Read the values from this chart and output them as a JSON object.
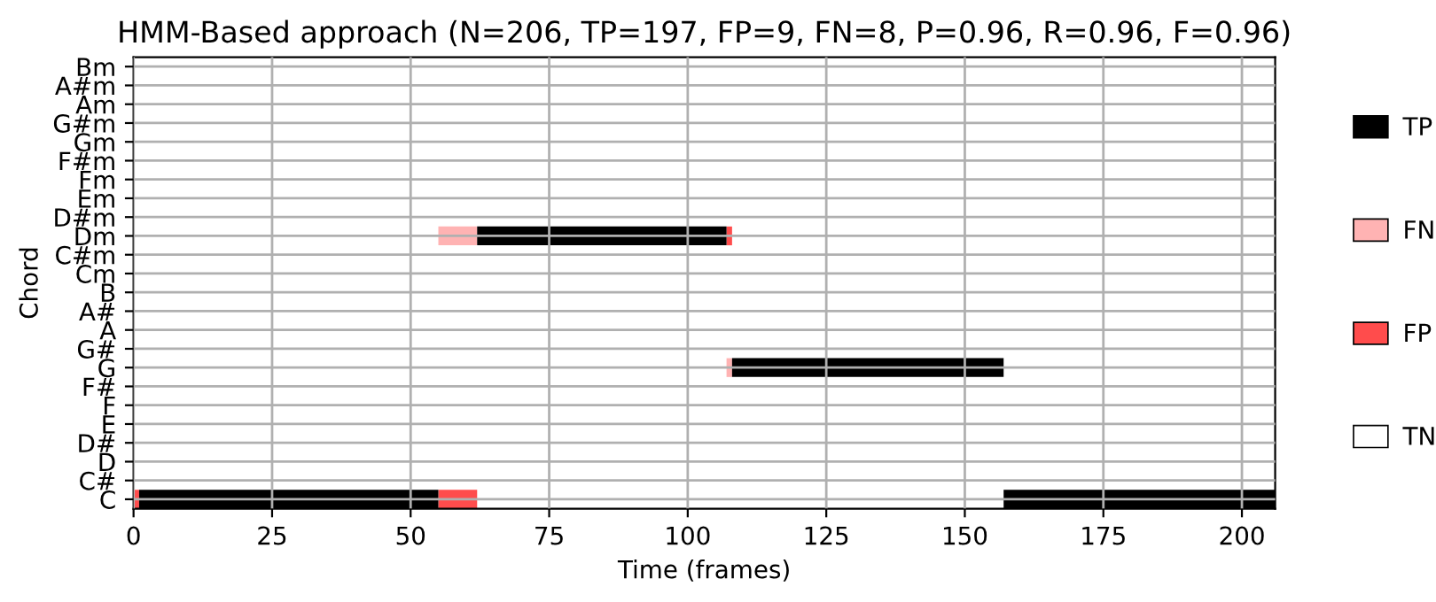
{
  "chart_data": {
    "type": "bar",
    "orientation": "horizontal",
    "title": "HMM-Based approach (N=206, TP=197, FP=9, FN=8, P=0.96, R=0.96, F=0.96)",
    "xlabel": "Time (frames)",
    "ylabel": "Chord",
    "categories": [
      "Bm",
      "A#m",
      "Am",
      "G#m",
      "Gm",
      "F#m",
      "Fm",
      "Em",
      "D#m",
      "Dm",
      "C#m",
      "Cm",
      "B",
      "A#",
      "A",
      "G#",
      "G",
      "F#",
      "F",
      "E",
      "D#",
      "D",
      "C#",
      "C"
    ],
    "series": [
      {
        "name": "TN",
        "color": "#ffffff",
        "values": [
          null,
          null,
          null,
          null,
          null,
          null,
          null,
          null,
          null,
          null,
          null,
          null,
          null,
          null,
          null,
          null,
          null,
          null,
          null,
          null,
          null,
          null,
          null,
          null
        ]
      },
      {
        "name": "FP",
        "color": "#ff4c4c",
        "values": [
          null,
          null,
          null,
          null,
          null,
          null,
          null,
          null,
          null,
          1,
          null,
          null,
          null,
          null,
          null,
          null,
          null,
          null,
          null,
          null,
          null,
          null,
          null,
          1
        ],
        "base": [
          null,
          null,
          null,
          null,
          null,
          null,
          null,
          null,
          null,
          107,
          null,
          null,
          null,
          null,
          null,
          null,
          null,
          null,
          null,
          null,
          null,
          null,
          null,
          0
        ]
      },
      {
        "color": "#ff4c4c",
        "values": [
          null,
          null,
          null,
          null,
          null,
          null,
          null,
          null,
          null,
          null,
          null,
          null,
          null,
          null,
          null,
          null,
          null,
          null,
          null,
          null,
          null,
          null,
          null,
          7
        ],
        "base": [
          null,
          null,
          null,
          null,
          null,
          null,
          null,
          null,
          null,
          null,
          null,
          null,
          null,
          null,
          null,
          null,
          null,
          null,
          null,
          null,
          null,
          null,
          null,
          55
        ]
      },
      {
        "name": "FN",
        "color": "#ffb3b3",
        "values": [
          null,
          null,
          null,
          null,
          null,
          null,
          null,
          null,
          null,
          7,
          null,
          null,
          null,
          null,
          null,
          null,
          1,
          null,
          null,
          null,
          null,
          null,
          null,
          null
        ],
        "base": [
          null,
          null,
          null,
          null,
          null,
          null,
          null,
          null,
          null,
          55,
          null,
          null,
          null,
          null,
          null,
          null,
          107,
          null,
          null,
          null,
          null,
          null,
          null,
          null
        ]
      },
      {
        "name": "TP",
        "color": "#000000",
        "values": [
          null,
          null,
          null,
          null,
          null,
          null,
          null,
          null,
          null,
          45,
          null,
          null,
          null,
          null,
          null,
          null,
          49,
          null,
          null,
          null,
          null,
          null,
          null,
          54
        ],
        "base": [
          null,
          null,
          null,
          null,
          null,
          null,
          null,
          null,
          null,
          62,
          null,
          null,
          null,
          null,
          null,
          null,
          108,
          null,
          null,
          null,
          null,
          null,
          null,
          1
        ]
      },
      {
        "color": "#000000",
        "values": [
          null,
          null,
          null,
          null,
          null,
          null,
          null,
          null,
          null,
          null,
          null,
          null,
          null,
          null,
          null,
          null,
          null,
          null,
          null,
          null,
          null,
          null,
          null,
          49
        ],
        "base": [
          null,
          null,
          null,
          null,
          null,
          null,
          null,
          null,
          null,
          null,
          null,
          null,
          null,
          null,
          null,
          null,
          null,
          null,
          null,
          null,
          null,
          null,
          null,
          157
        ]
      }
    ],
    "xlim": [
      0,
      206
    ],
    "xticks": [
      0,
      25,
      50,
      75,
      100,
      125,
      150,
      175,
      200
    ],
    "grid": true,
    "legend": "right"
  }
}
